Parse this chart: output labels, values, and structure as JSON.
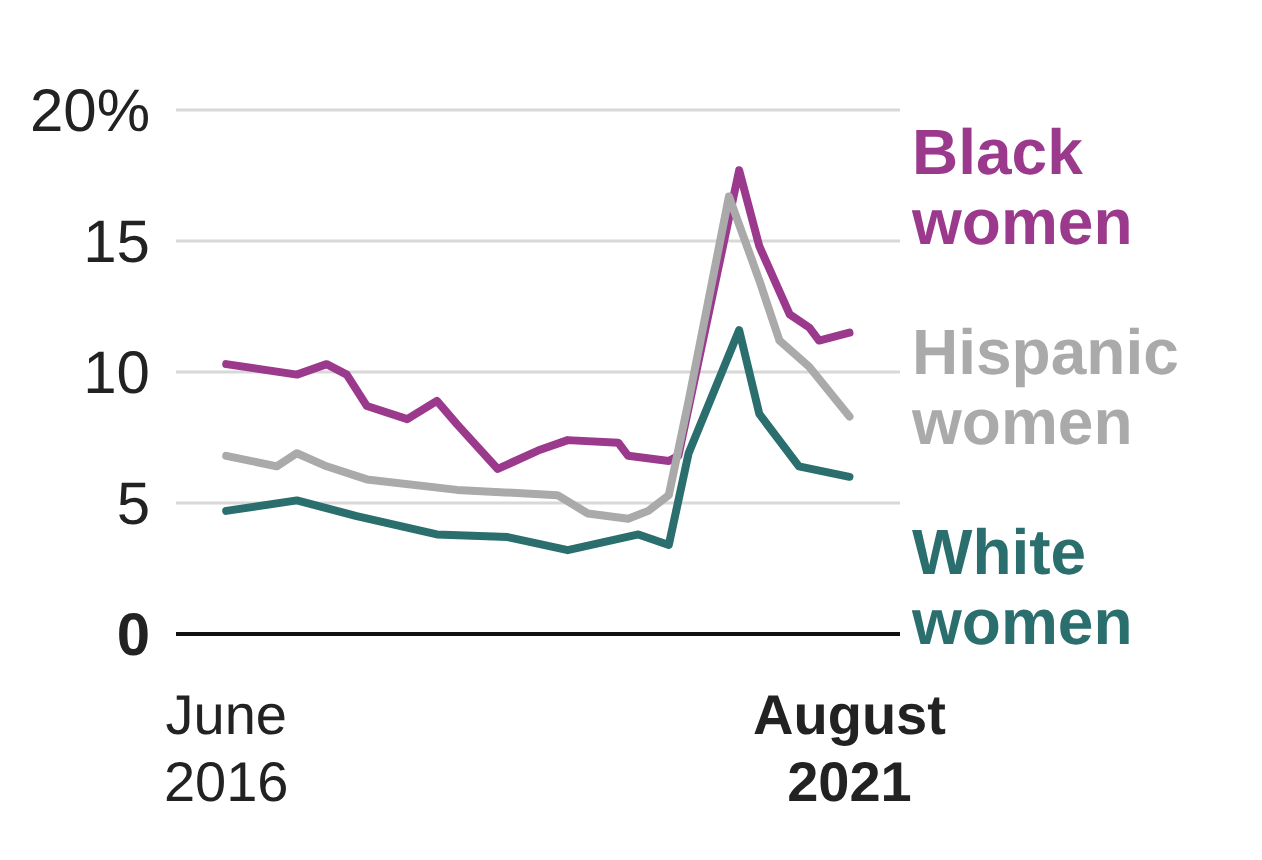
{
  "chart_data": {
    "type": "line",
    "xlim": [
      "2016-01",
      "2022-01"
    ],
    "xticks": [
      {
        "value": "2016-06",
        "label": "June 2016"
      },
      {
        "value": "2021-08",
        "label": "August 2021"
      }
    ],
    "ylim": [
      0,
      20
    ],
    "yticks": [
      {
        "value": 0,
        "label": "0"
      },
      5,
      10,
      15,
      {
        "value": 20,
        "label": "20%"
      }
    ],
    "grid": "y",
    "legend": false,
    "series": [
      {
        "name": "Black women",
        "color": "#9b3a8c",
        "x": [
          "2016-06",
          "2017-01",
          "2017-04",
          "2017-06",
          "2017-08",
          "2017-12",
          "2018-03",
          "2018-05",
          "2018-09",
          "2019-01",
          "2019-04",
          "2019-09",
          "2019-10",
          "2020-02",
          "2020-03",
          "2020-09",
          "2020-11",
          "2021-02",
          "2021-04",
          "2021-05",
          "2021-08"
        ],
        "values": [
          10.3,
          9.9,
          10.3,
          9.9,
          8.7,
          8.2,
          8.9,
          8.0,
          6.3,
          7.0,
          7.4,
          7.3,
          6.8,
          6.6,
          6.8,
          17.7,
          14.8,
          12.2,
          11.7,
          11.2,
          11.5
        ]
      },
      {
        "name": "Hispanic women",
        "color": "#aaaaaa",
        "x": [
          "2016-06",
          "2016-11",
          "2017-01",
          "2017-04",
          "2017-08",
          "2018-05",
          "2019-03",
          "2019-06",
          "2019-10",
          "2019-12",
          "2020-02",
          "2020-04",
          "2020-08",
          "2020-11",
          "2021-01",
          "2021-04",
          "2021-08"
        ],
        "values": [
          6.8,
          6.4,
          6.9,
          6.4,
          5.9,
          5.5,
          5.3,
          4.6,
          4.4,
          4.7,
          5.3,
          8.9,
          16.7,
          13.5,
          11.2,
          10.2,
          8.3
        ]
      },
      {
        "name": "White women",
        "color": "#2a6e6e",
        "x": [
          "2016-06",
          "2017-01",
          "2017-07",
          "2018-03",
          "2018-10",
          "2019-04",
          "2019-11",
          "2020-02",
          "2020-04",
          "2020-09",
          "2020-11",
          "2021-03",
          "2021-08"
        ],
        "values": [
          4.7,
          5.1,
          4.5,
          3.8,
          3.7,
          3.2,
          3.8,
          3.4,
          6.9,
          11.6,
          8.4,
          6.4,
          6.0
        ]
      }
    ]
  }
}
